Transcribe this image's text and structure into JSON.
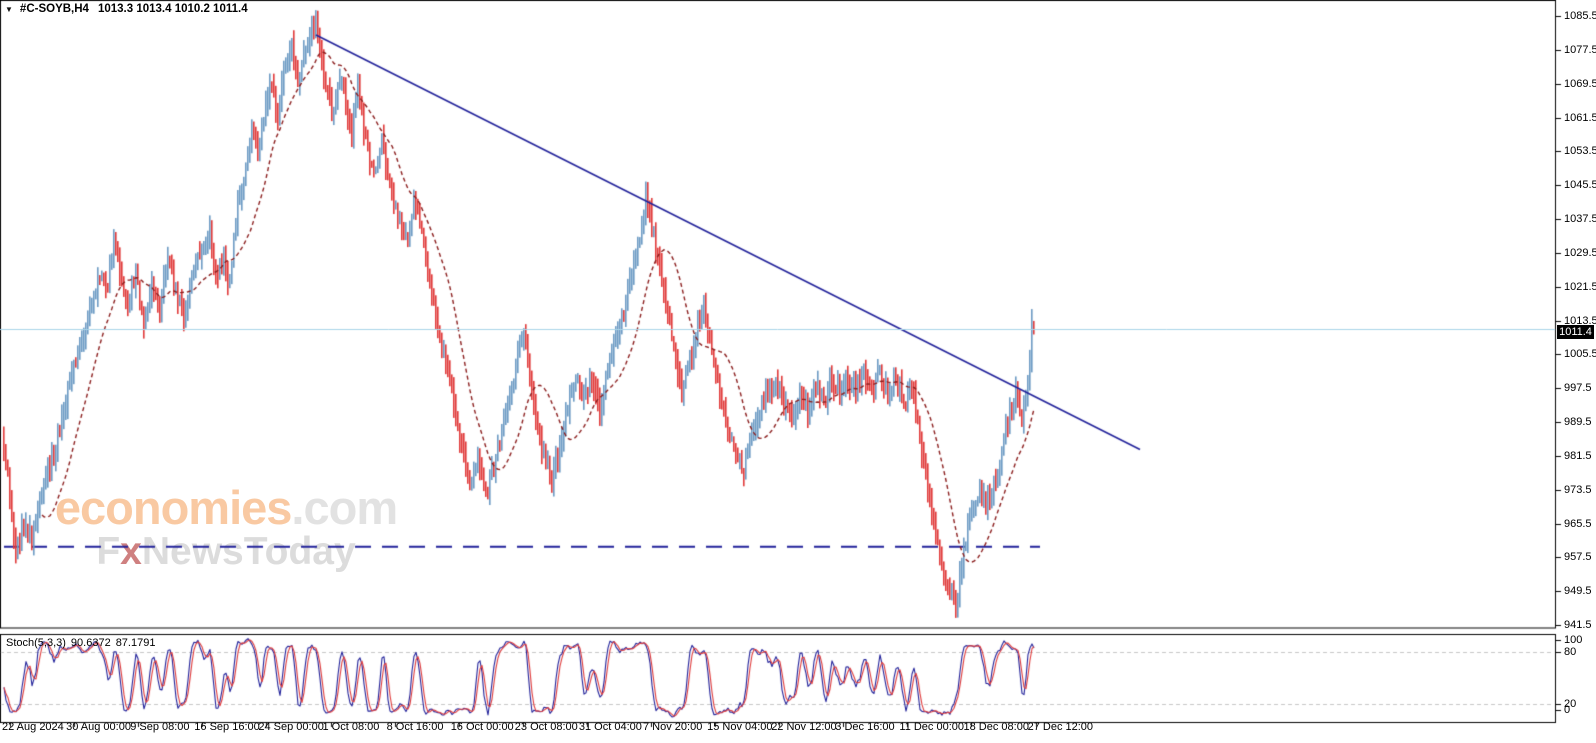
{
  "header": {
    "dropdown_icon": "▼",
    "symbol": "#C-SOYB,H4",
    "quote_string": "1013.3 1013.4 1010.2 1011.4"
  },
  "watermark": {
    "brand": "economies",
    "domain": ".com",
    "tag_prefix": "F",
    "tag_x": "x",
    "tag_suffix": "NewsToday"
  },
  "price_axis": {
    "ticks": [
      "1085.5",
      "1077.5",
      "1069.5",
      "1061.5",
      "1053.5",
      "1045.5",
      "1037.5",
      "1029.5",
      "1021.5",
      "1013.5",
      "1005.5",
      "997.5",
      "989.5",
      "981.5",
      "973.5",
      "965.5",
      "957.5",
      "949.5",
      "941.5"
    ]
  },
  "time_axis": {
    "labels": [
      "22 Aug 2024",
      "30 Aug 00:00",
      "9 Sep 08:00",
      "16 Sep 16:00",
      "24 Sep 00:00",
      "1 Oct 08:00",
      "8 Oct 16:00",
      "16 Oct 00:00",
      "23 Oct 08:00",
      "31 Oct 04:00",
      "7 Nov 20:00",
      "15 Nov 04:00",
      "22 Nov 12:00",
      "3 Dec 16:00",
      "11 Dec 00:00",
      "18 Dec 08:00",
      "27 Dec 12:00"
    ]
  },
  "indicator_axis": {
    "labels": [
      "100",
      "80",
      "20",
      "0"
    ],
    "values": [
      100,
      80,
      20,
      0
    ]
  },
  "chart_data": {
    "type": "ohlc-bars",
    "symbol": "#C-SOYB",
    "timeframe": "H4",
    "quote": {
      "open": 1013.3,
      "high": 1013.4,
      "low": 1010.2,
      "close": 1011.4
    },
    "recent_swing_high": 1016.2,
    "y_axis": {
      "min": 941.5,
      "max": 1085.5,
      "tick_step": 8
    },
    "bars": {
      "count": 516,
      "bars_per_time_tick": 32,
      "price_path": [
        [
          0,
          985
        ],
        [
          3,
          972
        ],
        [
          6,
          958
        ],
        [
          10,
          965
        ],
        [
          14,
          962
        ],
        [
          18,
          972
        ],
        [
          24,
          980
        ],
        [
          28,
          988
        ],
        [
          32,
          996
        ],
        [
          36,
          1004
        ],
        [
          40,
          1010
        ],
        [
          44,
          1018
        ],
        [
          48,
          1024
        ],
        [
          52,
          1020
        ],
        [
          55,
          1034
        ],
        [
          58,
          1024
        ],
        [
          62,
          1018
        ],
        [
          66,
          1024
        ],
        [
          70,
          1012
        ],
        [
          74,
          1022
        ],
        [
          78,
          1016
        ],
        [
          82,
          1028
        ],
        [
          86,
          1020
        ],
        [
          90,
          1014
        ],
        [
          95,
          1026
        ],
        [
          100,
          1030
        ],
        [
          103,
          1035
        ],
        [
          106,
          1024
        ],
        [
          110,
          1028
        ],
        [
          113,
          1022
        ],
        [
          116,
          1038
        ],
        [
          120,
          1048
        ],
        [
          124,
          1058
        ],
        [
          127,
          1052
        ],
        [
          130,
          1062
        ],
        [
          134,
          1070
        ],
        [
          137,
          1062
        ],
        [
          140,
          1072
        ],
        [
          144,
          1078
        ],
        [
          147,
          1070
        ],
        [
          150,
          1078
        ],
        [
          153,
          1082
        ],
        [
          156,
          1085
        ],
        [
          159,
          1074
        ],
        [
          162,
          1068
        ],
        [
          165,
          1062
        ],
        [
          168,
          1072
        ],
        [
          171,
          1064
        ],
        [
          174,
          1058
        ],
        [
          177,
          1068
        ],
        [
          181,
          1056
        ],
        [
          185,
          1048
        ],
        [
          189,
          1056
        ],
        [
          193,
          1046
        ],
        [
          197,
          1038
        ],
        [
          201,
          1032
        ],
        [
          205,
          1042
        ],
        [
          209,
          1034
        ],
        [
          213,
          1024
        ],
        [
          217,
          1012
        ],
        [
          221,
          1002
        ],
        [
          225,
          994
        ],
        [
          229,
          984
        ],
        [
          233,
          975
        ],
        [
          237,
          982
        ],
        [
          241,
          972
        ],
        [
          245,
          978
        ],
        [
          249,
          988
        ],
        [
          253,
          996
        ],
        [
          257,
          1005
        ],
        [
          260,
          1012
        ],
        [
          263,
          1000
        ],
        [
          266,
          990
        ],
        [
          270,
          982
        ],
        [
          274,
          975
        ],
        [
          278,
          984
        ],
        [
          282,
          992
        ],
        [
          286,
          1000
        ],
        [
          290,
          994
        ],
        [
          294,
          1000
        ],
        [
          298,
          992
        ],
        [
          302,
          1002
        ],
        [
          306,
          1010
        ],
        [
          310,
          1016
        ],
        [
          314,
          1024
        ],
        [
          318,
          1034
        ],
        [
          321,
          1043
        ],
        [
          324,
          1036
        ],
        [
          327,
          1028
        ],
        [
          331,
          1018
        ],
        [
          335,
          1008
        ],
        [
          339,
          996
        ],
        [
          343,
          1004
        ],
        [
          347,
          1012
        ],
        [
          350,
          1016
        ],
        [
          354,
          1006
        ],
        [
          358,
          996
        ],
        [
          362,
          988
        ],
        [
          366,
          982
        ],
        [
          370,
          978
        ],
        [
          374,
          986
        ],
        [
          378,
          992
        ],
        [
          382,
          996
        ],
        [
          386,
          1000
        ],
        [
          390,
          994
        ],
        [
          394,
          990
        ],
        [
          398,
          996
        ],
        [
          402,
          992
        ],
        [
          406,
          998
        ],
        [
          410,
          994
        ],
        [
          414,
          1000
        ],
        [
          418,
          996
        ],
        [
          422,
          1000
        ],
        [
          426,
          996
        ],
        [
          430,
          1001
        ],
        [
          434,
          997
        ],
        [
          438,
          1001
        ],
        [
          442,
          996
        ],
        [
          446,
          1000
        ],
        [
          450,
          994
        ],
        [
          454,
          998
        ],
        [
          457,
          990
        ],
        [
          460,
          980
        ],
        [
          464,
          968
        ],
        [
          468,
          958
        ],
        [
          472,
          950
        ],
        [
          476,
          947
        ],
        [
          479,
          956
        ],
        [
          482,
          964
        ],
        [
          485,
          970
        ],
        [
          488,
          974
        ],
        [
          491,
          970
        ],
        [
          494,
          973
        ],
        [
          497,
          978
        ],
        [
          500,
          985
        ],
        [
          503,
          992
        ],
        [
          506,
          997
        ],
        [
          509,
          991
        ],
        [
          512,
          1000
        ],
        [
          515,
          1013
        ]
      ]
    },
    "moving_average": {
      "type": "SMA",
      "period": 20,
      "style": "dashed",
      "color": "#8B1E1E"
    },
    "annotations": {
      "trendline": {
        "from_bar": 156,
        "from_price": 1081.0,
        "to_bar": 568,
        "to_price": 983.0,
        "color": "#22229A",
        "style": "solid"
      },
      "support_line": {
        "price": 960.0,
        "from_bar": 0,
        "to_bar": 518,
        "color": "#22229A",
        "style": "dashed"
      },
      "current_price_line": {
        "price": 1011.4,
        "color": "#A8D5E8"
      }
    },
    "indicator": {
      "label": "Stoch(5,3,3)",
      "name": "Stochastic Oscillator",
      "params": [
        5,
        3,
        3
      ],
      "k_value": "90.6372",
      "d_value": "87.1791",
      "levels": [
        80,
        20
      ],
      "range": [
        0,
        100
      ],
      "k_color": "#22229A",
      "d_color": "#E03C3C",
      "level_color": "#C6C6C6"
    },
    "colors": {
      "bar_up": "#6C9BC4",
      "bar_down": "#E03A3A",
      "background": "#FFFFFF",
      "frame": "#000000",
      "badge_bg": "#000000",
      "badge_text": "#FFFFFF"
    }
  }
}
